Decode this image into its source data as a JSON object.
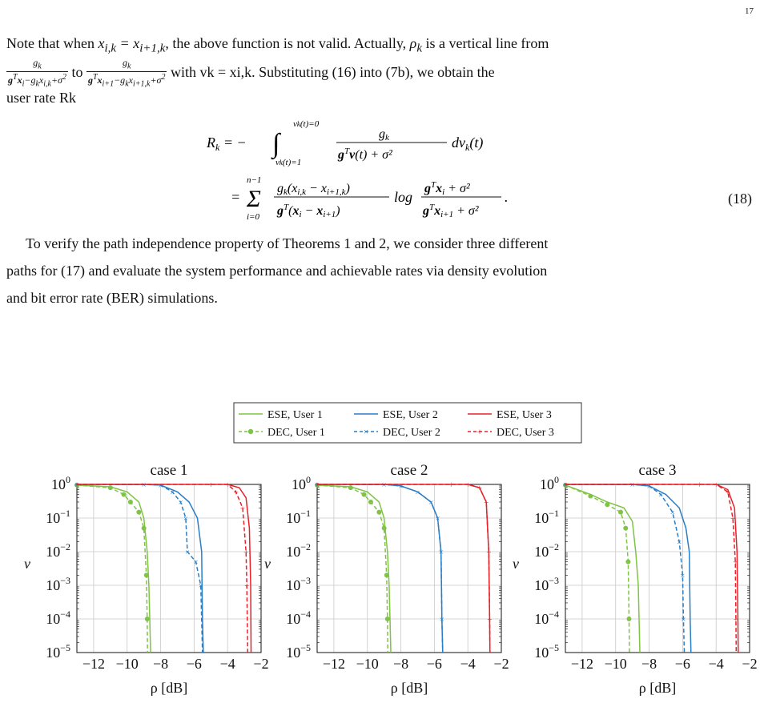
{
  "page": {
    "number": "17"
  },
  "text": {
    "p1_a": "Note that when ",
    "p1_a_math": "x",
    "p1_b": "x",
    "p1_b2": ", the above function is not valid. Actually, ",
    "p1_c": " is a vertical line from",
    "frac1_num": "g",
    "frac1_den": "gTxi−gkxi,k+σ²",
    "to": " to ",
    "frac2_num": "g",
    "frac2_den": "gTxi+1−gkxi+1,k+σ²",
    "p2_tail": " with vk = xi,k. Substituting (16) into (7b), we obtain the",
    "p3": "user rate Rk",
    "eq1": "Rk = − ∫ gk / (gTv(t) + σ²) dvk(t)",
    "eq2": "= Σ gk(xi,k − xi+1,k) / gT(xi − xi+1) · log (gTxi + σ²) / (gTxi+1 + σ²).",
    "eqnum": "(18)",
    "p4": "To verify the path independence property of Theorems 1 and 2, we consider three different",
    "p5": "paths for (17) and evaluate the system performance and achievable rates via density evolution",
    "p6": "and bit error rate (BER) simulations."
  },
  "legend": {
    "entries": [
      "ESE, User 1",
      "ESE, User 2",
      "ESE, User 3",
      "DEC, User 1",
      "DEC, User 2",
      "DEC, User 3"
    ]
  },
  "colors": {
    "user1": "#7fc444",
    "user2": "#2a7ec6",
    "user3": "#e8202a"
  },
  "chart_data": [
    {
      "type": "line",
      "title": "case 1",
      "xlabel": "ρ [dB]",
      "ylabel": "v",
      "xlim": [
        -13,
        -2
      ],
      "ylog": true,
      "ylim": [
        1e-05,
        1
      ],
      "xticks": [
        "−12",
        "−10",
        "−8",
        "−6",
        "−4",
        "−2"
      ],
      "yticks": [
        "10^0",
        "10^-1",
        "10^-2",
        "10^-3",
        "10^-4",
        "10^-5"
      ],
      "series": [
        {
          "name": "ESE, User 1",
          "x": [
            -13,
            -11,
            -10,
            -9.3,
            -9,
            -8.8,
            -8.7,
            -8.65,
            -8.6
          ],
          "y": [
            0.95,
            0.85,
            0.6,
            0.3,
            0.1,
            0.01,
            0.001,
            0.0001,
            1e-05
          ]
        },
        {
          "name": "DEC, User 1",
          "x": [
            -13,
            -11,
            -10.2,
            -9.8,
            -9.3,
            -9,
            -8.85,
            -8.8,
            -8.78
          ],
          "y": [
            0.95,
            0.8,
            0.5,
            0.3,
            0.15,
            0.05,
            0.002,
            0.0001,
            1e-05
          ]
        },
        {
          "name": "ESE, User 2",
          "x": [
            -13,
            -9,
            -8,
            -7,
            -6.3,
            -5.8,
            -5.55,
            -5.5,
            -5.45
          ],
          "y": [
            1,
            1,
            0.95,
            0.6,
            0.3,
            0.1,
            0.01,
            0.0001,
            1e-05
          ]
        },
        {
          "name": "DEC, User 2",
          "x": [
            -13,
            -9,
            -8,
            -7.3,
            -6.8,
            -6.5,
            -6.4,
            -5.9,
            -5.6,
            -5.5
          ],
          "y": [
            1,
            1,
            0.95,
            0.6,
            0.3,
            0.1,
            0.01,
            0.005,
            0.001,
            1e-05
          ]
        },
        {
          "name": "ESE, User 3",
          "x": [
            -13,
            -5,
            -4,
            -3.3,
            -2.9,
            -2.7,
            -2.62,
            -2.6
          ],
          "y": [
            1,
            1,
            1,
            0.8,
            0.4,
            0.05,
            0.001,
            1e-05
          ]
        },
        {
          "name": "DEC, User 3",
          "x": [
            -13,
            -5,
            -4,
            -3.5,
            -3.1,
            -2.9,
            -2.85,
            -2.8
          ],
          "y": [
            1,
            1,
            1,
            0.6,
            0.2,
            0.01,
            0.001,
            1e-05
          ]
        }
      ]
    },
    {
      "type": "line",
      "title": "case 2",
      "xlabel": "ρ [dB]",
      "ylabel": "v",
      "xlim": [
        -13,
        -2
      ],
      "ylog": true,
      "ylim": [
        1e-05,
        1
      ],
      "xticks": [
        "−12",
        "−10",
        "−8",
        "−6",
        "−4",
        "−2"
      ],
      "yticks": [
        "10^0",
        "10^-1",
        "10^-2",
        "10^-3",
        "10^-4",
        "10^-5"
      ],
      "series": [
        {
          "name": "ESE, User 1",
          "x": [
            -13,
            -11,
            -10,
            -9.3,
            -9,
            -8.8,
            -8.7,
            -8.65,
            -8.6
          ],
          "y": [
            0.95,
            0.85,
            0.6,
            0.3,
            0.1,
            0.01,
            0.001,
            0.0001,
            1e-05
          ]
        },
        {
          "name": "DEC, User 1",
          "x": [
            -13,
            -11,
            -10.2,
            -9.8,
            -9.3,
            -9,
            -8.85,
            -8.8,
            -8.78
          ],
          "y": [
            0.95,
            0.8,
            0.5,
            0.3,
            0.15,
            0.05,
            0.002,
            0.0001,
            1e-05
          ]
        },
        {
          "name": "ESE, User 2",
          "x": [
            -13,
            -9,
            -8,
            -7,
            -6.2,
            -5.8,
            -5.6,
            -5.55,
            -5.5
          ],
          "y": [
            1,
            1,
            0.9,
            0.6,
            0.3,
            0.1,
            0.01,
            0.0001,
            1e-05
          ]
        },
        {
          "name": "DEC, User 2",
          "x": [
            -13,
            -9,
            -8,
            -7,
            -6.2,
            -5.8,
            -5.6,
            -5.55,
            -5.5
          ],
          "y": [
            1,
            1,
            0.9,
            0.6,
            0.3,
            0.1,
            0.01,
            0.0001,
            1e-05
          ]
        },
        {
          "name": "ESE, User 3",
          "x": [
            -13,
            -5,
            -4,
            -3.3,
            -2.9,
            -2.75,
            -2.7,
            -2.68
          ],
          "y": [
            1,
            1,
            1,
            0.8,
            0.3,
            0.01,
            0.0001,
            1e-05
          ]
        },
        {
          "name": "DEC, User 3",
          "x": [
            -13,
            -5,
            -4,
            -3.3,
            -2.9,
            -2.75,
            -2.7,
            -2.68
          ],
          "y": [
            1,
            1,
            1,
            0.8,
            0.3,
            0.01,
            0.0001,
            1e-05
          ]
        }
      ]
    },
    {
      "type": "line",
      "title": "case 3",
      "xlabel": "ρ [dB]",
      "ylabel": "v",
      "xlim": [
        -13,
        -2
      ],
      "ylog": true,
      "ylim": [
        1e-05,
        1
      ],
      "xticks": [
        "−12",
        "−10",
        "−8",
        "−6",
        "−4",
        "−2"
      ],
      "yticks": [
        "10^0",
        "10^-1",
        "10^-2",
        "10^-3",
        "10^-4",
        "10^-5"
      ],
      "series": [
        {
          "name": "ESE, User 1",
          "x": [
            -13,
            -11.5,
            -10.5,
            -9.5,
            -9,
            -8.8,
            -8.65,
            -8.6,
            -8.55
          ],
          "y": [
            0.95,
            0.5,
            0.3,
            0.2,
            0.08,
            0.01,
            0.001,
            0.0001,
            1e-05
          ]
        },
        {
          "name": "DEC, User 1",
          "x": [
            -13,
            -11.5,
            -10.5,
            -9.7,
            -9.4,
            -9.25,
            -9.2,
            -9.18
          ],
          "y": [
            0.95,
            0.45,
            0.25,
            0.15,
            0.05,
            0.005,
            0.0001,
            1e-05
          ]
        },
        {
          "name": "ESE, User 2",
          "x": [
            -13,
            -9,
            -8,
            -7,
            -6.2,
            -5.8,
            -5.6,
            -5.55,
            -5.5
          ],
          "y": [
            1,
            1,
            0.9,
            0.5,
            0.2,
            0.05,
            0.01,
            0.0001,
            1e-05
          ]
        },
        {
          "name": "DEC, User 2",
          "x": [
            -13,
            -9,
            -8,
            -7.3,
            -6.6,
            -6.2,
            -6.0,
            -5.95,
            -5.9
          ],
          "y": [
            1,
            1,
            0.9,
            0.5,
            0.15,
            0.02,
            0.002,
            0.0001,
            1e-05
          ]
        },
        {
          "name": "ESE, User 3",
          "x": [
            -13,
            -5,
            -4,
            -3.3,
            -2.9,
            -2.75,
            -2.7,
            -2.68
          ],
          "y": [
            1,
            1,
            1,
            0.7,
            0.2,
            0.01,
            0.0001,
            1e-05
          ]
        },
        {
          "name": "DEC, User 3",
          "x": [
            -13,
            -5,
            -4,
            -3.3,
            -3.0,
            -2.85,
            -2.82,
            -2.8
          ],
          "y": [
            1,
            1,
            1,
            0.6,
            0.1,
            0.005,
            0.0001,
            1e-05
          ]
        }
      ]
    }
  ]
}
